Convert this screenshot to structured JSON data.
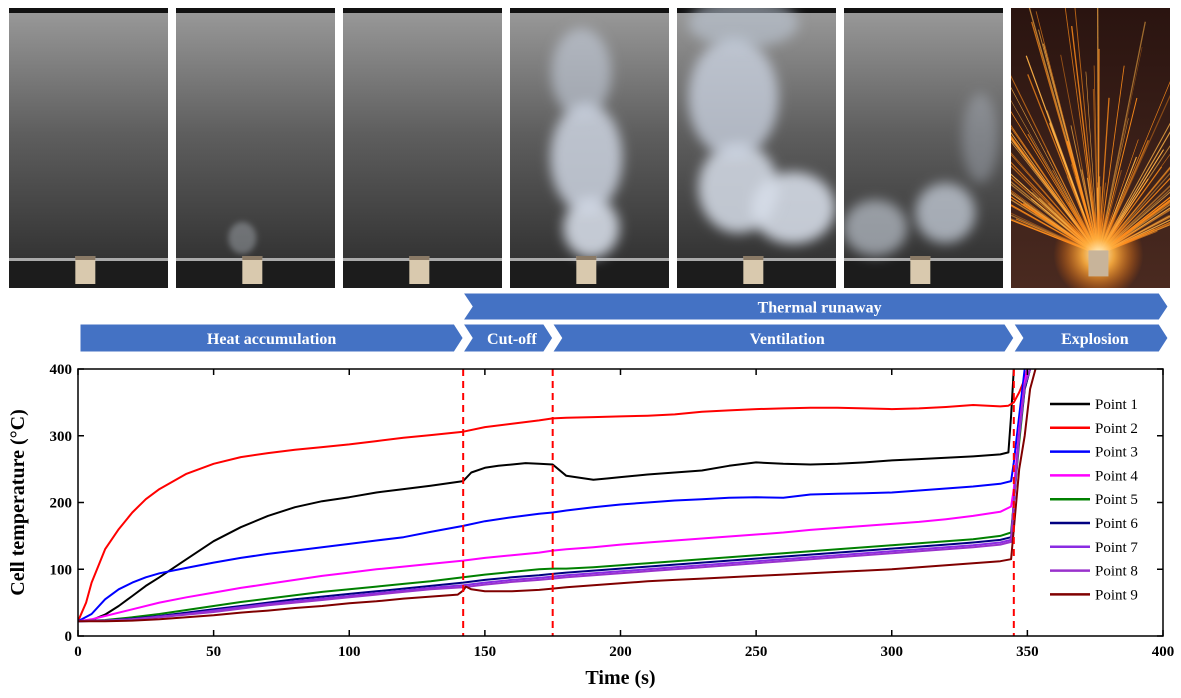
{
  "photos": [
    {
      "name": "photo-1-heat-accumulation",
      "scene": "smoke-faint"
    },
    {
      "name": "photo-2-heat-accumulation",
      "scene": "smoke-wisp"
    },
    {
      "name": "photo-3-heat-accumulation",
      "scene": "smoke-faint"
    },
    {
      "name": "photo-4-cut-off",
      "scene": "smoke-plume"
    },
    {
      "name": "photo-5-ventilation",
      "scene": "smoke-heavy"
    },
    {
      "name": "photo-6-ventilation",
      "scene": "smoke-spread"
    },
    {
      "name": "photo-7-explosion",
      "scene": "sparks"
    }
  ],
  "banners": {
    "top": {
      "label": "Thermal runaway"
    },
    "phases": [
      {
        "label": "Heat accumulation",
        "from": 0,
        "to": 142
      },
      {
        "label": "Cut-off",
        "from": 142,
        "to": 175
      },
      {
        "label": "Ventilation",
        "from": 175,
        "to": 345
      },
      {
        "label": "Explosion",
        "from": 345,
        "to": 400
      }
    ],
    "color": "#4472C4"
  },
  "chart_data": {
    "type": "line",
    "xlabel": "Time (s)",
    "ylabel": "Cell temperature (°C)",
    "xlim": [
      0,
      400
    ],
    "ylim": [
      0,
      400
    ],
    "xticks": [
      0,
      50,
      100,
      150,
      200,
      250,
      300,
      350,
      400
    ],
    "yticks": [
      0,
      100,
      200,
      300,
      400
    ],
    "grid": false,
    "legend": "right",
    "vlines": [
      142,
      175,
      345
    ],
    "vline_color": "#FF0000",
    "series": [
      {
        "name": "Point 1",
        "color": "#000000",
        "x": [
          0,
          5,
          10,
          15,
          20,
          25,
          30,
          40,
          50,
          60,
          70,
          80,
          90,
          100,
          110,
          120,
          130,
          142,
          145,
          150,
          155,
          160,
          165,
          170,
          175,
          180,
          185,
          190,
          195,
          200,
          210,
          220,
          230,
          240,
          250,
          260,
          270,
          280,
          290,
          300,
          310,
          320,
          330,
          340,
          343,
          344,
          345
        ],
        "y": [
          22,
          24,
          32,
          45,
          60,
          75,
          88,
          115,
          142,
          163,
          180,
          193,
          202,
          208,
          215,
          220,
          225,
          232,
          245,
          252,
          255,
          257,
          259,
          258,
          257,
          240,
          237,
          234,
          236,
          238,
          242,
          245,
          248,
          255,
          260,
          258,
          257,
          258,
          260,
          263,
          265,
          267,
          269,
          272,
          275,
          330,
          400
        ]
      },
      {
        "name": "Point 2",
        "color": "#FF0000",
        "x": [
          0,
          3,
          5,
          8,
          10,
          15,
          20,
          25,
          30,
          40,
          50,
          60,
          70,
          80,
          90,
          100,
          110,
          120,
          130,
          142,
          150,
          160,
          170,
          175,
          180,
          190,
          200,
          210,
          220,
          230,
          240,
          250,
          260,
          270,
          280,
          290,
          300,
          310,
          320,
          330,
          340,
          343,
          345,
          347,
          349,
          350
        ],
        "y": [
          22,
          50,
          80,
          110,
          130,
          160,
          185,
          205,
          220,
          243,
          258,
          268,
          274,
          279,
          283,
          287,
          292,
          297,
          301,
          306,
          313,
          318,
          323,
          326,
          327,
          328,
          329,
          330,
          332,
          336,
          338,
          340,
          341,
          342,
          342,
          341,
          340,
          341,
          343,
          346,
          344,
          345,
          350,
          365,
          385,
          400
        ]
      },
      {
        "name": "Point 3",
        "color": "#0000FF",
        "x": [
          0,
          5,
          10,
          15,
          20,
          25,
          30,
          40,
          50,
          60,
          70,
          80,
          90,
          100,
          110,
          120,
          130,
          142,
          150,
          160,
          170,
          175,
          180,
          190,
          200,
          210,
          220,
          230,
          240,
          250,
          260,
          270,
          280,
          290,
          300,
          310,
          320,
          330,
          340,
          344,
          345,
          347,
          349
        ],
        "y": [
          22,
          33,
          55,
          70,
          80,
          88,
          94,
          102,
          110,
          117,
          123,
          128,
          133,
          138,
          143,
          148,
          156,
          165,
          172,
          178,
          183,
          185,
          188,
          193,
          197,
          200,
          203,
          205,
          207,
          208,
          207,
          212,
          213,
          214,
          215,
          218,
          221,
          224,
          228,
          232,
          260,
          330,
          400
        ]
      },
      {
        "name": "Point 4",
        "color": "#FF00FF",
        "x": [
          0,
          5,
          10,
          20,
          30,
          40,
          50,
          60,
          70,
          80,
          90,
          100,
          110,
          120,
          130,
          142,
          150,
          160,
          170,
          175,
          180,
          190,
          200,
          210,
          220,
          230,
          240,
          250,
          260,
          270,
          280,
          290,
          300,
          310,
          320,
          330,
          340,
          344,
          345,
          347,
          349,
          350
        ],
        "y": [
          22,
          25,
          30,
          40,
          50,
          58,
          65,
          72,
          78,
          84,
          90,
          95,
          100,
          104,
          108,
          113,
          117,
          121,
          125,
          128,
          130,
          133,
          137,
          140,
          143,
          146,
          149,
          152,
          155,
          159,
          162,
          165,
          168,
          171,
          175,
          180,
          186,
          194,
          220,
          310,
          380,
          400
        ]
      },
      {
        "name": "Point 5",
        "color": "#008000",
        "x": [
          0,
          10,
          20,
          30,
          40,
          50,
          60,
          70,
          80,
          90,
          100,
          110,
          120,
          130,
          142,
          150,
          160,
          170,
          175,
          180,
          190,
          200,
          210,
          220,
          230,
          240,
          250,
          260,
          270,
          280,
          290,
          300,
          310,
          320,
          330,
          340,
          344,
          345,
          347,
          349,
          351
        ],
        "y": [
          22,
          24,
          28,
          33,
          39,
          45,
          51,
          56,
          61,
          66,
          70,
          74,
          78,
          82,
          88,
          92,
          96,
          100,
          101,
          101,
          103,
          106,
          109,
          112,
          115,
          118,
          121,
          124,
          127,
          130,
          133,
          136,
          139,
          142,
          145,
          150,
          155,
          200,
          290,
          370,
          400
        ]
      },
      {
        "name": "Point 6",
        "color": "#000080",
        "x": [
          0,
          10,
          20,
          30,
          40,
          50,
          60,
          70,
          80,
          90,
          100,
          110,
          120,
          130,
          142,
          150,
          160,
          170,
          175,
          180,
          190,
          200,
          210,
          220,
          230,
          240,
          250,
          260,
          270,
          280,
          290,
          300,
          310,
          320,
          330,
          340,
          344,
          345,
          347,
          349,
          351
        ],
        "y": [
          22,
          23,
          26,
          30,
          35,
          40,
          45,
          50,
          55,
          59,
          63,
          67,
          71,
          75,
          80,
          84,
          88,
          91,
          93,
          95,
          98,
          101,
          104,
          107,
          110,
          113,
          116,
          119,
          122,
          125,
          128,
          131,
          134,
          137,
          140,
          144,
          148,
          200,
          300,
          370,
          400
        ]
      },
      {
        "name": "Point 7",
        "color": "#8A2BE2",
        "x": [
          0,
          10,
          20,
          30,
          40,
          50,
          60,
          70,
          80,
          90,
          100,
          110,
          120,
          130,
          142,
          150,
          160,
          170,
          175,
          180,
          190,
          200,
          210,
          220,
          230,
          240,
          250,
          260,
          270,
          280,
          290,
          300,
          310,
          320,
          330,
          340,
          344,
          345,
          347,
          349,
          351
        ],
        "y": [
          22,
          23,
          25,
          29,
          33,
          38,
          43,
          48,
          52,
          56,
          60,
          64,
          68,
          72,
          76,
          80,
          84,
          87,
          89,
          91,
          94,
          97,
          100,
          103,
          106,
          109,
          112,
          115,
          118,
          121,
          124,
          127,
          130,
          133,
          136,
          140,
          144,
          200,
          300,
          375,
          400
        ]
      },
      {
        "name": "Point 8",
        "color": "#9932CC",
        "x": [
          0,
          10,
          20,
          30,
          40,
          50,
          60,
          70,
          80,
          90,
          100,
          110,
          120,
          130,
          142,
          150,
          160,
          170,
          175,
          180,
          190,
          200,
          210,
          220,
          230,
          240,
          250,
          260,
          270,
          280,
          290,
          300,
          310,
          320,
          330,
          340,
          344,
          345,
          347,
          349,
          351
        ],
        "y": [
          22,
          23,
          25,
          28,
          32,
          36,
          41,
          46,
          50,
          54,
          58,
          62,
          66,
          70,
          73,
          77,
          81,
          84,
          86,
          88,
          91,
          94,
          97,
          100,
          103,
          106,
          109,
          112,
          115,
          118,
          121,
          124,
          127,
          130,
          133,
          137,
          141,
          200,
          300,
          375,
          400
        ]
      },
      {
        "name": "Point 9",
        "color": "#800000",
        "x": [
          0,
          10,
          20,
          30,
          40,
          50,
          60,
          70,
          80,
          90,
          100,
          110,
          120,
          130,
          140,
          142,
          143,
          145,
          150,
          160,
          170,
          175,
          180,
          190,
          200,
          210,
          220,
          230,
          240,
          250,
          260,
          270,
          280,
          290,
          300,
          310,
          320,
          330,
          340,
          344,
          345,
          347,
          349,
          351,
          353
        ],
        "y": [
          22,
          22,
          23,
          25,
          28,
          31,
          35,
          38,
          42,
          45,
          49,
          52,
          56,
          59,
          62,
          68,
          74,
          70,
          67,
          67,
          69,
          71,
          73,
          76,
          79,
          82,
          84,
          86,
          88,
          90,
          92,
          94,
          96,
          98,
          100,
          103,
          106,
          109,
          112,
          115,
          160,
          250,
          300,
          370,
          400
        ]
      }
    ]
  }
}
